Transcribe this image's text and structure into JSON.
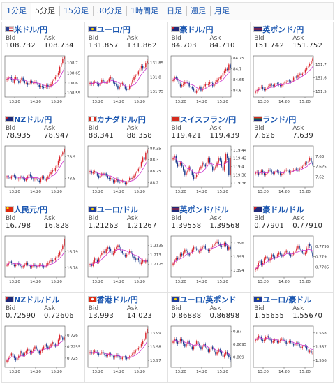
{
  "timeframe_tabs": [
    "1分足",
    "5分足",
    "15分足",
    "30分足",
    "1時間足",
    "日足",
    "週足",
    "月足"
  ],
  "active_tab": "5分足",
  "labels": {
    "bid": "Bid",
    "ask": "Ask"
  },
  "colors": {
    "up": "#d9252c",
    "down": "#1a3a8c",
    "ma": "#cc33cc",
    "link": "#1a56b0"
  },
  "panels": [
    {
      "name": "米ドル/円",
      "flag": "us",
      "bid": "108.732",
      "ask": "108.734",
      "yticks": [
        "108.7",
        "108.65",
        "108.6",
        "108.55"
      ]
    },
    {
      "name": "ユーロ/円",
      "flag": "eu",
      "bid": "131.857",
      "ask": "131.862",
      "yticks": [
        "131.85",
        "131.8",
        "131.75"
      ]
    },
    {
      "name": "豪ドル/円",
      "flag": "au",
      "bid": "84.703",
      "ask": "84.710",
      "yticks": [
        "84.75",
        "84.7",
        "84.65",
        "84.6"
      ]
    },
    {
      "name": "英ポンド/円",
      "flag": "uk",
      "bid": "151.742",
      "ask": "151.752",
      "yticks": [
        "151.7",
        "151.6",
        "151.5"
      ]
    },
    {
      "name": "NZドル/円",
      "flag": "nz",
      "bid": "78.935",
      "ask": "78.947",
      "yticks": [
        "78.9",
        "78.8"
      ]
    },
    {
      "name": "カナダドル/円",
      "flag": "ca",
      "bid": "88.341",
      "ask": "88.358",
      "yticks": [
        "88.35",
        "88.3",
        "88.25",
        "88.2"
      ]
    },
    {
      "name": "スイスフラン/円",
      "flag": "ch",
      "bid": "119.421",
      "ask": "119.439",
      "yticks": [
        "119.44",
        "119.42",
        "119.4",
        "119.38",
        "119.36"
      ]
    },
    {
      "name": "ランド/円",
      "flag": "za",
      "bid": "7.626",
      "ask": "7.639",
      "yticks": [
        "7.63",
        "7.625",
        "7.62"
      ]
    },
    {
      "name": "人民元/円",
      "flag": "cn",
      "bid": "16.798",
      "ask": "16.828",
      "yticks": [
        "16.79",
        "16.78"
      ]
    },
    {
      "name": "ユーロ/ドル",
      "flag": "eu",
      "bid": "1.21263",
      "ask": "1.21267",
      "yticks": [
        "1.2135",
        "1.213",
        "1.2125"
      ]
    },
    {
      "name": "英ポンド/ドル",
      "flag": "uk",
      "bid": "1.39558",
      "ask": "1.39568",
      "yticks": [
        "1.396",
        "1.395",
        "1.394"
      ]
    },
    {
      "name": "豪ドル/ドル",
      "flag": "au",
      "bid": "0.77901",
      "ask": "0.77910",
      "yticks": [
        "0.7795",
        "0.779",
        "0.7785"
      ]
    },
    {
      "name": "NZドル/ドル",
      "flag": "nz",
      "bid": "0.72590",
      "ask": "0.72606",
      "yticks": [
        "0.726",
        "0.7255",
        "0.725"
      ]
    },
    {
      "name": "香港ドル/円",
      "flag": "hk",
      "bid": "13.993",
      "ask": "14.023",
      "yticks": [
        "13.99",
        "13.98",
        "13.97"
      ]
    },
    {
      "name": "ユーロ/英ポンド",
      "flag": "eu",
      "bid": "0.86888",
      "ask": "0.86898",
      "yticks": [
        "0.87",
        "0.8695",
        "0.869"
      ]
    },
    {
      "name": "ユーロ/豪ドル",
      "flag": "eu",
      "bid": "1.55655",
      "ask": "1.55670",
      "yticks": [
        "1.558",
        "1.557",
        "1.556"
      ]
    }
  ],
  "chart_data": [
    {
      "type": "candlestick",
      "title": "米ドル/円",
      "x_ticks": [
        "13:20",
        "14:20",
        "15:20"
      ],
      "ylim": [
        108.53,
        108.735
      ],
      "close": [
        108.62,
        108.625,
        108.63,
        108.615,
        108.6,
        108.62,
        108.63,
        108.61,
        108.6,
        108.615,
        108.625,
        108.61,
        108.6,
        108.6,
        108.59,
        108.6,
        108.61,
        108.6,
        108.6,
        108.605,
        108.6,
        108.59,
        108.58,
        108.585,
        108.58,
        108.575,
        108.58,
        108.59,
        108.58,
        108.585,
        108.595,
        108.61,
        108.62,
        108.63,
        108.64,
        108.65,
        108.68,
        108.7,
        108.72,
        108.732
      ]
    },
    {
      "type": "candlestick",
      "title": "ユーロ/円",
      "x_ticks": [
        "13:20",
        "14:20",
        "15:20"
      ],
      "ylim": [
        131.73,
        131.875
      ],
      "close": [
        131.78,
        131.775,
        131.78,
        131.785,
        131.78,
        131.775,
        131.77,
        131.78,
        131.79,
        131.785,
        131.78,
        131.78,
        131.785,
        131.795,
        131.8,
        131.79,
        131.78,
        131.775,
        131.77,
        131.76,
        131.765,
        131.775,
        131.78,
        131.77,
        131.76,
        131.755,
        131.76,
        131.77,
        131.78,
        131.79,
        131.8,
        131.805,
        131.81,
        131.82,
        131.83,
        131.84,
        131.83,
        131.835,
        131.85,
        131.857
      ]
    },
    {
      "type": "candlestick",
      "title": "豪ドル/円",
      "x_ticks": [
        "13:20",
        "14:20",
        "15:20"
      ],
      "ylim": [
        84.57,
        84.76
      ],
      "close": [
        84.65,
        84.66,
        84.655,
        84.65,
        84.63,
        84.62,
        84.625,
        84.63,
        84.64,
        84.64,
        84.635,
        84.62,
        84.615,
        84.61,
        84.6,
        84.59,
        84.6,
        84.61,
        84.615,
        84.6,
        84.61,
        84.62,
        84.63,
        84.625,
        84.63,
        84.64,
        84.635,
        84.62,
        84.63,
        84.64,
        84.65,
        84.655,
        84.66,
        84.665,
        84.68,
        84.69,
        84.7,
        84.695,
        84.72,
        84.703
      ]
    },
    {
      "type": "candlestick",
      "title": "英ポンド/円",
      "x_ticks": [
        "13:20",
        "14:20",
        "15:20"
      ],
      "ylim": [
        151.46,
        151.76
      ],
      "close": [
        151.5,
        151.51,
        151.52,
        151.53,
        151.535,
        151.52,
        151.51,
        151.52,
        151.53,
        151.54,
        151.55,
        151.545,
        151.54,
        151.55,
        151.56,
        151.555,
        151.55,
        151.54,
        151.55,
        151.56,
        151.565,
        151.57,
        151.58,
        151.575,
        151.57,
        151.58,
        151.6,
        151.61,
        151.6,
        151.62,
        151.63,
        151.62,
        151.63,
        151.64,
        151.66,
        151.67,
        151.69,
        151.7,
        151.72,
        151.742
      ]
    },
    {
      "type": "candlestick",
      "title": "NZドル/円",
      "x_ticks": [
        "13:20",
        "14:20",
        "15:20"
      ],
      "ylim": [
        78.76,
        78.95
      ],
      "close": [
        78.81,
        78.805,
        78.8,
        78.81,
        78.815,
        78.81,
        78.8,
        78.795,
        78.8,
        78.81,
        78.805,
        78.8,
        78.79,
        78.8,
        78.81,
        78.82,
        78.81,
        78.8,
        78.795,
        78.8,
        78.8,
        78.79,
        78.785,
        78.8,
        78.81,
        78.8,
        78.79,
        78.8,
        78.81,
        78.82,
        78.83,
        78.84,
        78.835,
        78.85,
        78.86,
        78.88,
        78.9,
        78.91,
        78.92,
        78.935
      ]
    },
    {
      "type": "candlestick",
      "title": "カナダドル/円",
      "x_ticks": [
        "13:20",
        "14:20",
        "15:20"
      ],
      "ylim": [
        88.18,
        88.36
      ],
      "close": [
        88.25,
        88.24,
        88.245,
        88.25,
        88.24,
        88.23,
        88.22,
        88.23,
        88.24,
        88.235,
        88.24,
        88.23,
        88.22,
        88.215,
        88.22,
        88.21,
        88.2,
        88.21,
        88.215,
        88.205,
        88.2,
        88.205,
        88.21,
        88.2,
        88.195,
        88.2,
        88.21,
        88.22,
        88.215,
        88.22,
        88.23,
        88.24,
        88.25,
        88.26,
        88.27,
        88.29,
        88.31,
        88.3,
        88.33,
        88.341
      ]
    },
    {
      "type": "candlestick",
      "title": "スイスフラン/円",
      "x_ticks": [
        "13:20",
        "14:20",
        "15:20"
      ],
      "ylim": [
        119.35,
        119.45
      ],
      "close": [
        119.42,
        119.425,
        119.41,
        119.4,
        119.405,
        119.41,
        119.4,
        119.39,
        119.38,
        119.385,
        119.39,
        119.4,
        119.39,
        119.38,
        119.37,
        119.375,
        119.38,
        119.39,
        119.395,
        119.4,
        119.41,
        119.405,
        119.4,
        119.41,
        119.42,
        119.41,
        119.4,
        119.39,
        119.395,
        119.4,
        119.41,
        119.42,
        119.415,
        119.4,
        119.39,
        119.41,
        119.43,
        119.42,
        119.38,
        119.421
      ]
    },
    {
      "type": "candlestick",
      "title": "ランド/円",
      "x_ticks": [
        "13:20",
        "14:20",
        "15:20"
      ],
      "ylim": [
        7.615,
        7.635
      ],
      "close": [
        7.622,
        7.6225,
        7.621,
        7.622,
        7.623,
        7.622,
        7.621,
        7.6215,
        7.6225,
        7.6235,
        7.623,
        7.622,
        7.6215,
        7.622,
        7.623,
        7.6225,
        7.622,
        7.621,
        7.6215,
        7.622,
        7.623,
        7.6235,
        7.623,
        7.622,
        7.6225,
        7.623,
        7.6235,
        7.624,
        7.6235,
        7.623,
        7.624,
        7.6245,
        7.625,
        7.626,
        7.627,
        7.6265,
        7.628,
        7.629,
        7.627,
        7.626
      ]
    },
    {
      "type": "candlestick",
      "title": "人民元/円",
      "x_ticks": [
        "13:20",
        "14:20",
        "15:20"
      ],
      "ylim": [
        16.774,
        16.8
      ],
      "close": [
        16.782,
        16.783,
        16.784,
        16.783,
        16.782,
        16.781,
        16.782,
        16.783,
        16.782,
        16.781,
        16.78,
        16.781,
        16.782,
        16.783,
        16.782,
        16.781,
        16.78,
        16.781,
        16.782,
        16.781,
        16.78,
        16.781,
        16.782,
        16.782,
        16.781,
        16.78,
        16.781,
        16.782,
        16.783,
        16.784,
        16.785,
        16.784,
        16.785,
        16.786,
        16.787,
        16.788,
        16.79,
        16.792,
        16.794,
        16.798
      ]
    },
    {
      "type": "candlestick",
      "title": "ユーロ/ドル",
      "x_ticks": [
        "13:20",
        "14:20",
        "15:20"
      ],
      "ylim": [
        1.2118,
        1.214
      ],
      "close": [
        1.2125,
        1.2124,
        1.2126,
        1.2128,
        1.2127,
        1.2126,
        1.2128,
        1.213,
        1.2131,
        1.2132,
        1.2131,
        1.2133,
        1.2134,
        1.2133,
        1.2132,
        1.213,
        1.2131,
        1.2133,
        1.2134,
        1.2135,
        1.2134,
        1.2132,
        1.2131,
        1.213,
        1.2129,
        1.213,
        1.2131,
        1.2132,
        1.2131,
        1.2129,
        1.2128,
        1.2127,
        1.2128,
        1.2127,
        1.2125,
        1.2126,
        1.2127,
        1.2126,
        1.2127,
        1.21263
      ]
    },
    {
      "type": "candlestick",
      "title": "英ポンド/ドル",
      "x_ticks": [
        "13:20",
        "14:20",
        "15:20"
      ],
      "ylim": [
        1.3935,
        1.3965
      ],
      "close": [
        1.3945,
        1.3947,
        1.3949,
        1.3948,
        1.395,
        1.3952,
        1.3951,
        1.3953,
        1.3955,
        1.3954,
        1.3952,
        1.3951,
        1.3953,
        1.3955,
        1.3957,
        1.3956,
        1.3955,
        1.3953,
        1.3954,
        1.3956,
        1.3957,
        1.3958,
        1.3956,
        1.3955,
        1.3954,
        1.3955,
        1.3957,
        1.3958,
        1.3959,
        1.396,
        1.3961,
        1.3959,
        1.3958,
        1.3957,
        1.3958,
        1.396,
        1.3958,
        1.3955,
        1.3957,
        1.39558
      ]
    },
    {
      "type": "candlestick",
      "title": "豪ドル/ドル",
      "x_ticks": [
        "13:20",
        "14:20",
        "15:20"
      ],
      "ylim": [
        0.778,
        0.78
      ],
      "close": [
        0.7784,
        0.7785,
        0.7787,
        0.7788,
        0.7786,
        0.7787,
        0.7789,
        0.779,
        0.7789,
        0.7788,
        0.7789,
        0.7791,
        0.779,
        0.7789,
        0.779,
        0.7791,
        0.7792,
        0.7791,
        0.779,
        0.7791,
        0.7792,
        0.7793,
        0.7792,
        0.7791,
        0.779,
        0.7791,
        0.7792,
        0.7793,
        0.7794,
        0.7795,
        0.7794,
        0.7793,
        0.7792,
        0.7791,
        0.7792,
        0.7794,
        0.7796,
        0.7795,
        0.7792,
        0.77901
      ]
    },
    {
      "type": "candlestick",
      "title": "NZドル/ドル",
      "x_ticks": [
        "13:20",
        "14:20",
        "15:20"
      ],
      "ylim": [
        0.7246,
        0.7264
      ],
      "close": [
        0.7249,
        0.725,
        0.7251,
        0.7252,
        0.7251,
        0.725,
        0.7249,
        0.725,
        0.7251,
        0.7253,
        0.7252,
        0.7251,
        0.7252,
        0.7253,
        0.7254,
        0.7253,
        0.7252,
        0.7253,
        0.7254,
        0.7255,
        0.7254,
        0.7253,
        0.7252,
        0.7253,
        0.7254,
        0.7255,
        0.7256,
        0.7255,
        0.7254,
        0.7255,
        0.7256,
        0.7257,
        0.7256,
        0.7255,
        0.7256,
        0.7258,
        0.726,
        0.7259,
        0.7258,
        0.7259
      ]
    },
    {
      "type": "candlestick",
      "title": "香港ドル/円",
      "x_ticks": [
        "13:20",
        "14:20",
        "15:20"
      ],
      "ylim": [
        13.965,
        13.995
      ],
      "close": [
        13.976,
        13.975,
        13.976,
        13.977,
        13.976,
        13.975,
        13.974,
        13.975,
        13.976,
        13.975,
        13.974,
        13.973,
        13.974,
        13.975,
        13.974,
        13.973,
        13.972,
        13.973,
        13.974,
        13.973,
        13.972,
        13.971,
        13.972,
        13.973,
        13.972,
        13.971,
        13.972,
        13.973,
        13.974,
        13.975,
        13.976,
        13.977,
        13.978,
        13.979,
        13.98,
        13.982,
        13.984,
        13.986,
        13.99,
        13.993
      ]
    },
    {
      "type": "candlestick",
      "title": "ユーロ/英ポンド",
      "x_ticks": [
        "13:20",
        "14:20",
        "15:20"
      ],
      "ylim": [
        0.8686,
        0.8702
      ],
      "close": [
        0.8696,
        0.8697,
        0.8696,
        0.8695,
        0.8696,
        0.8697,
        0.8696,
        0.8695,
        0.8694,
        0.8695,
        0.8696,
        0.8695,
        0.8694,
        0.8693,
        0.8694,
        0.8695,
        0.8696,
        0.8695,
        0.8694,
        0.8693,
        0.8694,
        0.8695,
        0.8694,
        0.8693,
        0.8692,
        0.8693,
        0.8694,
        0.8693,
        0.8692,
        0.8691,
        0.8692,
        0.8693,
        0.8692,
        0.8691,
        0.869,
        0.8691,
        0.8692,
        0.8691,
        0.869,
        0.86888
      ]
    },
    {
      "type": "candlestick",
      "title": "ユーロ/豪ドル",
      "x_ticks": [
        "13:20",
        "14:20",
        "15:20"
      ],
      "ylim": [
        1.5555,
        1.5585
      ],
      "close": [
        1.5575,
        1.5576,
        1.5578,
        1.5577,
        1.5575,
        1.5574,
        1.5575,
        1.5577,
        1.5578,
        1.5576,
        1.5575,
        1.5573,
        1.5574,
        1.5575,
        1.5574,
        1.5573,
        1.5574,
        1.5575,
        1.5576,
        1.5575,
        1.5574,
        1.5572,
        1.5573,
        1.5574,
        1.5573,
        1.5572,
        1.5571,
        1.5572,
        1.5573,
        1.5572,
        1.557,
        1.5569,
        1.557,
        1.5571,
        1.557,
        1.5568,
        1.5566,
        1.5567,
        1.5565,
        1.55655
      ]
    }
  ]
}
